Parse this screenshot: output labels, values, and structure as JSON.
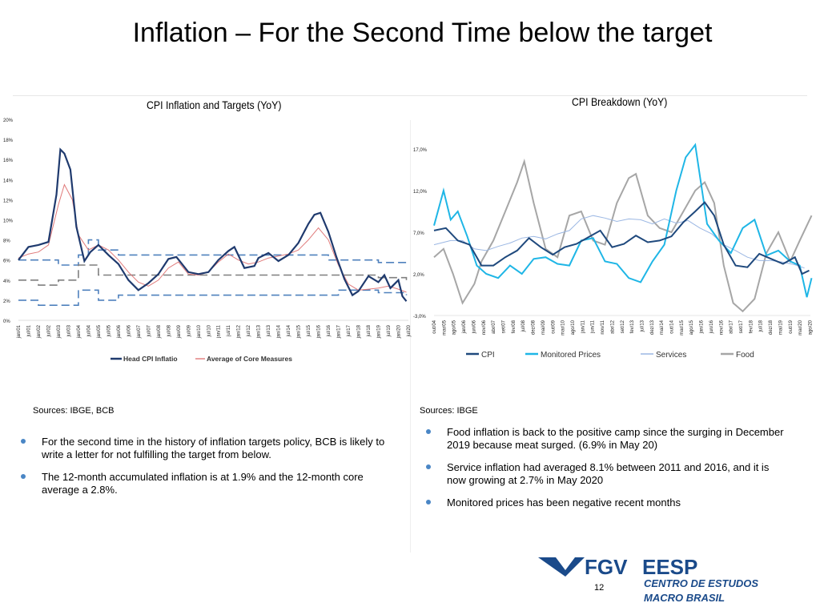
{
  "slide": {
    "title": "Inflation –  For the Second Time below the target",
    "page_number": "12"
  },
  "left": {
    "chart_title": "CPI Inflation and Targets (YoY)",
    "source": "Sources: IBGE, BCB",
    "bullets": [
      "For the second time in the history of inflation targets policy, BCB is likely to write a letter for not fulfilling the target from below.",
      "The 12-month accumulated inflation is at 1.9% and the 12-month core average a 2.8%."
    ]
  },
  "right": {
    "chart_title": "CPI Breakdown (YoY)",
    "source": "Sources: IBGE",
    "bullets": [
      "Food inflation is back to the positive camp since the surging in December  2019 because meat surged. (6.9% in May 20)",
      "Service inflation had averaged 8.1% between 2011 and 2016, and it is now growing at 2.7% in May  2020",
      "Monitored prices has been negative  recent months"
    ]
  },
  "logo": {
    "fgv": "FGV",
    "eesp": "EESP",
    "line1": "CENTRO DE ESTUDOS",
    "line2": "MACRO BRASIL"
  },
  "colors": {
    "navy": "#1f3a6e",
    "core_red": "#e07a7a",
    "target_blue": "#4f81bd",
    "target_gray": "#7f7f7f",
    "cpi": "#1f497d",
    "monitored": "#1fb6e6",
    "services": "#9bb7e3",
    "food": "#a6a6a6",
    "logo_blue": "#1a4a8a"
  },
  "chart_data": [
    {
      "type": "line",
      "title": "CPI Inflation and Targets (YoY)",
      "ylim": [
        0,
        20
      ],
      "y_ticks": [
        "0%",
        "2%",
        "4%",
        "6%",
        "8%",
        "10%",
        "12%",
        "14%",
        "16%",
        "18%",
        "20%"
      ],
      "x_ticks": [
        "jan/01",
        "jul/01",
        "jan/02",
        "jul/02",
        "jan/03",
        "jul/03",
        "jan/04",
        "jul/04",
        "jan/05",
        "jul/05",
        "jan/06",
        "jul/06",
        "jan/07",
        "jul/07",
        "jan/08",
        "jul/08",
        "jan/09",
        "jul/09",
        "jan/10",
        "jul/10",
        "jan/11",
        "jul/11",
        "jan/12",
        "jul/12",
        "jan/13",
        "jul/13",
        "jan/14",
        "jul/14",
        "jan/15",
        "jul/15",
        "jan/16",
        "jul/16",
        "jan/17",
        "jul/17",
        "jan/18",
        "jul/18",
        "jan/19",
        "jul/19",
        "jan/20",
        "jul/20"
      ],
      "legend": [
        "Head CPI Inflatio",
        "Average of Core Measures"
      ],
      "series": [
        {
          "name": "Head CPI Inflatio",
          "x": [
            2001,
            2001.5,
            2002,
            2002.5,
            2002.9,
            2003.1,
            2003.3,
            2003.6,
            2003.9,
            2004.3,
            2004.6,
            2005,
            2005.5,
            2006,
            2006.5,
            2007,
            2007.5,
            2008,
            2008.5,
            2008.9,
            2009.5,
            2010,
            2010.5,
            2011,
            2011.5,
            2011.8,
            2012.3,
            2012.8,
            2013,
            2013.5,
            2014,
            2014.5,
            2015,
            2015.5,
            2015.8,
            2016.1,
            2016.5,
            2016.9,
            2017.3,
            2017.7,
            2018,
            2018.5,
            2019,
            2019.3,
            2019.6,
            2020,
            2020.2,
            2020.4
          ],
          "values": [
            6.0,
            7.3,
            7.5,
            7.8,
            12.5,
            17.0,
            16.6,
            15.0,
            9.3,
            5.9,
            6.8,
            7.5,
            6.5,
            5.6,
            4.0,
            3.0,
            3.7,
            4.6,
            6.1,
            6.3,
            4.8,
            4.6,
            4.8,
            6.0,
            6.9,
            7.3,
            5.2,
            5.4,
            6.2,
            6.7,
            5.9,
            6.5,
            7.7,
            9.6,
            10.5,
            10.7,
            8.8,
            6.3,
            4.1,
            2.5,
            2.9,
            4.4,
            3.8,
            4.5,
            3.2,
            4.0,
            2.4,
            1.9
          ]
        },
        {
          "name": "Average of Core Measures",
          "x": [
            2001,
            2001.5,
            2002,
            2002.5,
            2003,
            2003.3,
            2003.7,
            2004,
            2004.5,
            2005,
            2005.5,
            2006,
            2006.5,
            2007,
            2007.5,
            2008,
            2008.5,
            2009,
            2009.5,
            2010,
            2010.5,
            2011,
            2011.5,
            2012,
            2012.5,
            2013,
            2013.5,
            2014,
            2014.5,
            2015,
            2015.5,
            2016,
            2016.5,
            2017,
            2017.5,
            2018,
            2018.5,
            2019,
            2019.5,
            2020,
            2020.4
          ],
          "values": [
            6.2,
            6.6,
            6.8,
            7.5,
            11.5,
            13.5,
            12.0,
            8.5,
            7.0,
            7.5,
            7.0,
            6.0,
            4.8,
            3.8,
            3.4,
            4.0,
            5.2,
            5.8,
            4.6,
            4.5,
            4.8,
            5.8,
            6.6,
            6.0,
            5.6,
            5.8,
            6.2,
            6.4,
            6.6,
            7.0,
            8.0,
            9.2,
            8.0,
            5.5,
            3.6,
            3.0,
            3.1,
            3.2,
            3.4,
            3.1,
            2.8
          ]
        },
        {
          "name": "Target (upper)",
          "values": [
            6.0,
            6.0,
            5.5,
            6.5,
            8.0,
            7.0,
            6.5,
            6.5,
            6.5,
            6.5,
            6.5,
            6.0,
            6.0,
            5.75,
            5.5
          ],
          "x": [
            2001,
            2002,
            2003,
            2004,
            2004.5,
            2005,
            2006,
            2008,
            2010,
            2012,
            2014,
            2016.5,
            2017,
            2019,
            2020.4
          ]
        },
        {
          "name": "Target (center)",
          "values": [
            4.0,
            3.5,
            4.0,
            5.5,
            4.5,
            4.5,
            4.5,
            4.5,
            4.25,
            4.0
          ],
          "x": [
            2001,
            2002,
            2003,
            2004,
            2005,
            2006,
            2012,
            2016.5,
            2019,
            2020.4
          ]
        },
        {
          "name": "Target (lower)",
          "values": [
            2.0,
            1.5,
            3.0,
            2.0,
            2.5,
            2.5,
            3.0,
            2.75,
            2.5
          ],
          "x": [
            2001,
            2002,
            2004,
            2005,
            2006,
            2016,
            2017,
            2019,
            2020.4
          ]
        }
      ]
    },
    {
      "type": "line",
      "title": "CPI Breakdown (YoY)",
      "ylim": [
        -3.0,
        17.0
      ],
      "y_ticks": [
        "-3,0%",
        "2,0%",
        "7,0%",
        "12,0%",
        "17,0%"
      ],
      "x_ticks": [
        "out/04",
        "mar/05",
        "ago/05",
        "jan/06",
        "jun/06",
        "nov/06",
        "abr/07",
        "set/07",
        "fev/08",
        "jul/08",
        "dez/08",
        "mai/09",
        "out/09",
        "mar/10",
        "ago/10",
        "jan/11",
        "jun/11",
        "nov/11",
        "abr/12",
        "set/12",
        "fev/13",
        "jul/13",
        "dez/13",
        "mai/14",
        "out/14",
        "mar/15",
        "ago/15",
        "jan/16",
        "jun/16",
        "nov/16",
        "abr/17",
        "set/17",
        "fev/18",
        "jul/18",
        "dez/18",
        "mai/19",
        "out/19",
        "mar/20",
        "ago/20"
      ],
      "legend": [
        "CPI",
        "Monitored Prices",
        "Services",
        "Food"
      ],
      "series": [
        {
          "name": "CPI",
          "x": [
            2004.8,
            2005.3,
            2005.8,
            2006.3,
            2006.8,
            2007.3,
            2007.8,
            2008.3,
            2008.8,
            2009.3,
            2009.8,
            2010.3,
            2010.8,
            2011.3,
            2011.8,
            2012.3,
            2012.8,
            2013.3,
            2013.8,
            2014.3,
            2014.8,
            2015.3,
            2015.8,
            2016.2,
            2016.6,
            2017,
            2017.5,
            2018,
            2018.5,
            2019,
            2019.5,
            2020,
            2020.3,
            2020.6
          ],
          "values": [
            7.2,
            7.5,
            6.0,
            5.5,
            3.0,
            3.0,
            4.0,
            4.8,
            6.3,
            5.2,
            4.3,
            5.2,
            5.6,
            6.4,
            7.2,
            5.2,
            5.6,
            6.6,
            5.8,
            6.0,
            6.5,
            8.2,
            9.5,
            10.6,
            9.0,
            5.5,
            3.0,
            2.8,
            4.4,
            3.8,
            3.2,
            4.0,
            2.0,
            2.4
          ]
        },
        {
          "name": "Monitored Prices",
          "x": [
            2004.8,
            2005.2,
            2005.5,
            2005.8,
            2006.2,
            2006.6,
            2007,
            2007.5,
            2008,
            2008.5,
            2009,
            2009.5,
            2010,
            2010.5,
            2011,
            2011.5,
            2012,
            2012.5,
            2013,
            2013.5,
            2014,
            2014.5,
            2015,
            2015.4,
            2015.8,
            2016.3,
            2016.8,
            2017.3,
            2017.8,
            2018.3,
            2018.8,
            2019.3,
            2019.8,
            2020.2,
            2020.5,
            2020.7
          ],
          "values": [
            7.8,
            12.0,
            8.5,
            9.5,
            6.5,
            3.0,
            2.0,
            1.5,
            3.0,
            2.0,
            3.8,
            4.0,
            3.2,
            3.0,
            6.0,
            6.3,
            3.5,
            3.2,
            1.5,
            1.0,
            3.5,
            5.5,
            12.0,
            16.0,
            17.5,
            8.0,
            6.0,
            4.5,
            7.5,
            8.5,
            4.2,
            4.8,
            3.5,
            3.0,
            -0.8,
            1.5
          ]
        },
        {
          "name": "Services",
          "x": [
            2004.8,
            2005.5,
            2006,
            2006.5,
            2007,
            2007.5,
            2008,
            2008.5,
            2009,
            2009.5,
            2010,
            2010.5,
            2011,
            2011.5,
            2012,
            2012.5,
            2013,
            2013.5,
            2014,
            2014.5,
            2015,
            2015.5,
            2016,
            2016.5,
            2017,
            2017.5,
            2018,
            2018.5,
            2019,
            2019.5,
            2020,
            2020.4
          ],
          "values": [
            5.5,
            6.0,
            6.0,
            5.0,
            4.8,
            5.3,
            5.7,
            6.3,
            6.5,
            6.2,
            6.8,
            7.2,
            8.6,
            9.0,
            8.7,
            8.3,
            8.6,
            8.5,
            8.0,
            8.6,
            8.1,
            8.4,
            7.5,
            6.8,
            5.5,
            4.8,
            4.0,
            3.6,
            3.6,
            3.4,
            3.1,
            2.7
          ]
        },
        {
          "name": "Food",
          "x": [
            2004.8,
            2005.2,
            2005.6,
            2006,
            2006.5,
            2006.8,
            2007.3,
            2007.8,
            2008.3,
            2008.6,
            2009,
            2009.5,
            2010,
            2010.5,
            2011,
            2011.5,
            2012,
            2012.5,
            2013,
            2013.3,
            2013.8,
            2014.3,
            2014.8,
            2015.3,
            2015.8,
            2016.2,
            2016.6,
            2017,
            2017.4,
            2017.8,
            2018.3,
            2018.8,
            2019.3,
            2019.8,
            2020.2,
            2020.7
          ],
          "values": [
            4.0,
            5.0,
            2.0,
            -1.5,
            0.8,
            3.5,
            6.0,
            9.5,
            13.0,
            15.5,
            10.5,
            5.0,
            4.0,
            9.0,
            9.5,
            6.0,
            5.5,
            10.5,
            13.5,
            14.0,
            9.0,
            7.5,
            7.0,
            9.5,
            12.0,
            13.0,
            10.5,
            3.0,
            -1.5,
            -2.5,
            -1.0,
            4.5,
            7.0,
            3.5,
            6.0,
            9.0
          ]
        }
      ]
    }
  ]
}
